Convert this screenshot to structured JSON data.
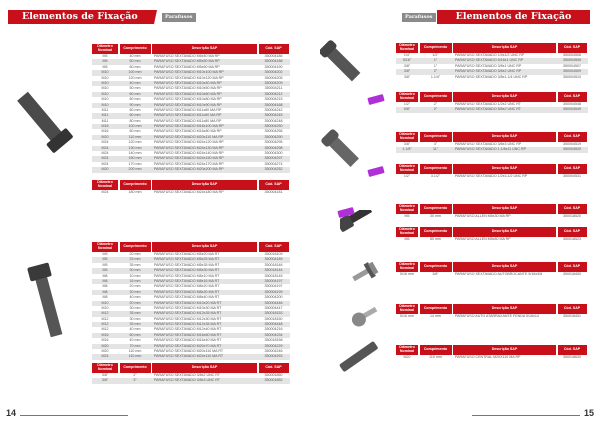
{
  "left_page": {
    "title": "Elementos de Fixação",
    "tag": "Parafusos",
    "page_number": "14"
  },
  "right_page": {
    "title": "Elementos de Fixação",
    "tag": "Parafusos",
    "page_number": "15"
  },
  "columns": [
    "Diâmetro Nominal",
    "Comprimento",
    "Descrição SAP",
    "Cód. SAP"
  ],
  "tables": [
    {
      "rows": [
        [
          "M5",
          "40 mm",
          "PARAFUSO SEXTAVADO M5x40 MA RP",
          "350004186"
        ],
        [
          "M5",
          "50 mm",
          "PARAFUSO SEXTAVADO M5x50 MA RP",
          "350004188"
        ],
        [
          "M5",
          "60 mm",
          "PARAFUSO SEXTAVADO M5x60 MA RP",
          "350004190"
        ],
        [
          "M10",
          "100 mm",
          "PARAFUSO SEXTAVADO M10x100 MA RP",
          "350004202"
        ],
        [
          "M10",
          "120 mm",
          "PARAFUSO SEXTAVADO M10x120 MA RP",
          "350004205"
        ],
        [
          "M10",
          "40 mm",
          "PARAFUSO SEXTAVADO M10x40 MA RP",
          "350004209"
        ],
        [
          "M10",
          "50 mm",
          "PARAFUSO SEXTAVADO M10x50 MA RP",
          "350004211"
        ],
        [
          "M10",
          "60 mm",
          "PARAFUSO SEXTAVADO M10x60 MA RP",
          "350004212"
        ],
        [
          "M10",
          "80 mm",
          "PARAFUSO SEXTAVADO M10x80 MA RP",
          "350004215"
        ],
        [
          "M10",
          "90 mm",
          "PARAFUSO SEXTAVADO M10x90 MA RP",
          "350004168"
        ],
        [
          "M11",
          "80 mm",
          "PARAFUSO SEXTAVADO M11x80 MA RP",
          "350004242"
        ],
        [
          "M11",
          "60 mm",
          "PARAFUSO SEXTAVADO M11x60 MA RP",
          "350004245"
        ],
        [
          "M11",
          "80 mm",
          "PARAFUSO SEXTAVADO M11x80 MA RP",
          "350004248"
        ],
        [
          "M16",
          "100 mm",
          "PARAFUSO SEXTAVADO M16x100 MA RP",
          "350004250"
        ],
        [
          "M16",
          "80 mm",
          "PARAFUSO SEXTAVADO M16x80 MA RP",
          "350004256"
        ],
        [
          "M20",
          "110 mm",
          "PARAFUSO SEXTAVADO M20x110 MA RP",
          "350004290"
        ],
        [
          "M24",
          "120 mm",
          "PARAFUSO SEXTAVADO M24x120 MA RP",
          "350004295"
        ],
        [
          "M24",
          "130 mm",
          "PARAFUSO SEXTAVADO M24x130 MA RP",
          "350004298"
        ],
        [
          "M24",
          "140 mm",
          "PARAFUSO SEXTAVADO M24x140 MA RP",
          "350004300"
        ],
        [
          "M24",
          "150 mm",
          "PARAFUSO SEXTAVADO M24x150 MA RP",
          "350004297"
        ],
        [
          "M24",
          "170 mm",
          "PARAFUSO SEXTAVADO M24x170 MA RP",
          "350004274"
        ],
        [
          "M20",
          "200 mm",
          "PARAFUSO SEXTAVADO M20x200 MA RP",
          "350004252"
        ]
      ]
    },
    {
      "rows": [
        [
          "M24",
          "180 mm",
          "PARAFUSO SEXTAVADO M24x180 MA RP",
          "350004181"
        ]
      ]
    },
    {
      "rows": [
        [
          "M5",
          "20 mm",
          "PARAFUSO SEXTAVADO M5x20 MA RT",
          "350018109"
        ],
        [
          "M5",
          "25 mm",
          "PARAFUSO SEXTAVADO M5x25 MA RT",
          "350004189"
        ],
        [
          "M5",
          "35 mm",
          "PARAFUSO SEXTAVADO M5x35 MA RT",
          "350018146"
        ],
        [
          "M5",
          "30 mm",
          "PARAFUSO SEXTAVADO M5x30 MA RT",
          "350018144"
        ],
        [
          "M8",
          "10 mm",
          "PARAFUSO SEXTAVADO M8x10 MA RT",
          "350018145"
        ],
        [
          "M8",
          "16 mm",
          "PARAFUSO SEXTAVADO M8x16 MA RT",
          "350004197"
        ],
        [
          "M8",
          "20 mm",
          "PARAFUSO SEXTAVADO M8x20 MA RT",
          "350004197"
        ],
        [
          "M8",
          "30 mm",
          "PARAFUSO SEXTAVADO M8x30 MA RT",
          "350004199"
        ],
        [
          "M8",
          "40 mm",
          "PARAFUSO SEXTAVADO M8x40 MA RT",
          "350004200"
        ],
        [
          "M10",
          "20 mm",
          "PARAFUSO SEXTAVADO M10x20 MA RT",
          "350004446"
        ],
        [
          "M10",
          "30 mm",
          "PARAFUSO SEXTAVADO M10x30 MA RT",
          "350004447"
        ],
        [
          "M12",
          "35 mm",
          "PARAFUSO SEXTAVADO M12x35 MA RT",
          "350018153"
        ],
        [
          "M12",
          "30 mm",
          "PARAFUSO SEXTAVADO M12x30 MA RT",
          "350018150"
        ],
        [
          "M12",
          "35 mm",
          "PARAFUSO SEXTAVADO M12x35 MA RT",
          "350004448"
        ],
        [
          "M12",
          "40 mm",
          "PARAFUSO SEXTAVADO M12x40 MA RT",
          "350004216"
        ],
        [
          "M16",
          "60 mm",
          "PARAFUSO SEXTAVADO M16x60 MA RT",
          "350004234"
        ],
        [
          "M16",
          "40 mm",
          "PARAFUSO SEXTAVADO M16x40 MA RT",
          "350018158"
        ],
        [
          "M20",
          "70 mm",
          "PARAFUSO SEXTAVADO M20x70 MA RT",
          "350004229"
        ],
        [
          "M20",
          "110 mm",
          "PARAFUSO SEXTAVADO M20x110 MA RT",
          "350004246"
        ],
        [
          "M24",
          "110 mm",
          "PARAFUSO SEXTAVADO M24x110 MA RT",
          "350004253"
        ]
      ]
    },
    {
      "rows": [
        [
          "3/8\"",
          "2\"",
          "PARAFUSO SEXTAVADO 3/8x2 UNC RT",
          "350001850"
        ],
        [
          "3/8\"",
          "3\"",
          "PARAFUSO SEXTAVADO 3/8x3 UNC RT",
          "350001852"
        ]
      ]
    },
    {
      "rows": [
        [
          "1/4\"",
          "1/2\"",
          "PARAFUSO SEXTAVADO 1/4x1/2 UNC RP",
          "350004506"
        ],
        [
          "5/16\"",
          "1\"",
          "PARAFUSO SEXTAVADO 5/16x1 UNC RP",
          "350004505"
        ],
        [
          "3/8\"",
          "1\"",
          "PARAFUSO SEXTAVADO 3/8x1 UNC RP",
          "350004507"
        ],
        [
          "3/8\"",
          "2\"",
          "PARAFUSO SEXTAVADO 3/8x2 UNC RP",
          "350004509"
        ],
        [
          "3/8\"",
          "1.1/4\"",
          "PARAFUSO SEXTAVADO 3/8x1.1/4 UNC RP",
          "350004510"
        ]
      ]
    },
    {
      "rows": [
        [
          "1/2\"",
          "2\"",
          "PARAFUSO SEXTAVADO 1/2x2 UNC RT",
          "350004548"
        ],
        [
          "5/8\"",
          "2\"",
          "PARAFUSO SEXTAVADO 5/8x2 UNC RT",
          "350004549"
        ]
      ]
    },
    {
      "rows": [
        [
          "3/8\"",
          "3\"",
          "PARAFUSO SEXTAVADO 3/8x3 UNC RP",
          "350004519"
        ],
        [
          "1.1/8\"",
          "11\"",
          "PARAFUSO SEXTAVADO 1.1/8x11 UNC RP",
          "350004520"
        ]
      ]
    },
    {
      "rows": [
        [
          "1/2\"",
          "3.1/2\"",
          "PARAFUSO SEXTAVADO 1/2x3.1/2 UNC RP",
          "350004531"
        ]
      ]
    },
    {
      "rows": [
        [
          "M5",
          "30 mm",
          "PARAFUSO ALLEN M5x30 MA RP",
          "350018520"
        ]
      ]
    },
    {
      "rows": [
        [
          "M5",
          "80 mm",
          "PARAFUSO ALLEN M5x80 MA RP",
          "350018523"
        ]
      ]
    },
    {
      "rows": [
        [
          "5/16 mm",
          "3/8\"",
          "PARAFUSO SEXTAVADO AUTOBROCANTE 5/16x3/8",
          "350018450"
        ]
      ]
    },
    {
      "rows": [
        [
          "5/16 mm",
          "14 mm",
          "PARAFUSO AUTO ATARRAXANTE FENDA 5/16x14",
          "350018451"
        ]
      ]
    },
    {
      "rows": [
        [
          "M20",
          "110 mm",
          "PARAFUSO CENTRAL M20X110 MA RP",
          "350018630"
        ]
      ]
    }
  ]
}
